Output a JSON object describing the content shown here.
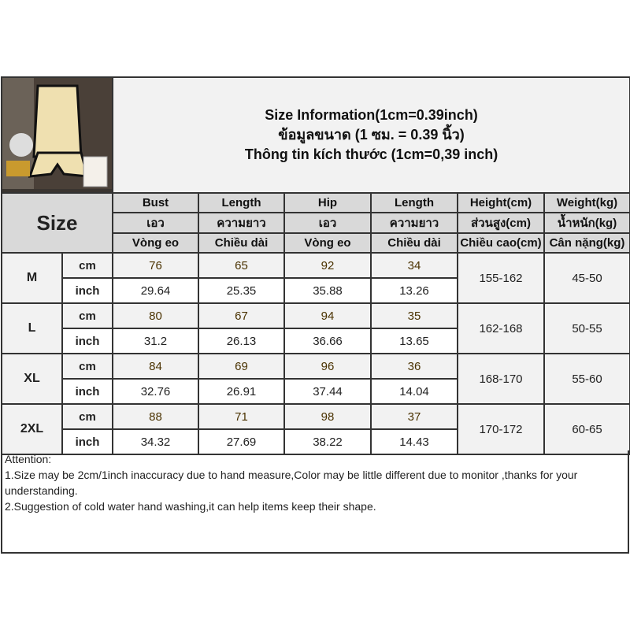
{
  "header": {
    "lines": [
      "Size Information(1cm=0.39inch)",
      "ข้อมูลขนาด (1 ซม. = 0.39 นิ้ว)",
      "Thông tin kích thước (1cm=0,39 inch)"
    ]
  },
  "size_label": "Size",
  "columns": [
    [
      "Bust",
      "เอว",
      "Vòng eo"
    ],
    [
      "Length",
      "ความยาว",
      "Chiều dài"
    ],
    [
      "Hip",
      "เอว",
      "Vòng eo"
    ],
    [
      "Length",
      "ความยาว",
      "Chiều dài"
    ],
    [
      "Height(cm)",
      "ส่วนสูง(cm)",
      "Chiều cao(cm)"
    ],
    [
      "Weight(kg)",
      "น้ำหนัก(kg)",
      "Cân nặng(kg)"
    ]
  ],
  "units": {
    "cm": "cm",
    "inch": "inch"
  },
  "rows": [
    {
      "size": "M",
      "cm": [
        "76",
        "65",
        "92",
        "34"
      ],
      "inch": [
        "29.64",
        "25.35",
        "35.88",
        "13.26"
      ],
      "height": "155-162",
      "weight": "45-50"
    },
    {
      "size": "L",
      "cm": [
        "80",
        "67",
        "94",
        "35"
      ],
      "inch": [
        "31.2",
        "26.13",
        "36.66",
        "13.65"
      ],
      "height": "162-168",
      "weight": "50-55"
    },
    {
      "size": "XL",
      "cm": [
        "84",
        "69",
        "96",
        "36"
      ],
      "inch": [
        "32.76",
        "26.91",
        "37.44",
        "14.04"
      ],
      "height": "168-170",
      "weight": "55-60"
    },
    {
      "size": "2XL",
      "cm": [
        "88",
        "71",
        "98",
        "37"
      ],
      "inch": [
        "34.32",
        "27.69",
        "38.22",
        "14.43"
      ],
      "height": "170-172",
      "weight": "60-65"
    }
  ],
  "attention": [
    "Attention:",
    "1.Size may be 2cm/1inch inaccuracy due to hand measure,Color may be little different due to monitor ,thanks for your understanding.",
    "2.Suggestion of cold water hand washing,it can help items keep their shape."
  ]
}
